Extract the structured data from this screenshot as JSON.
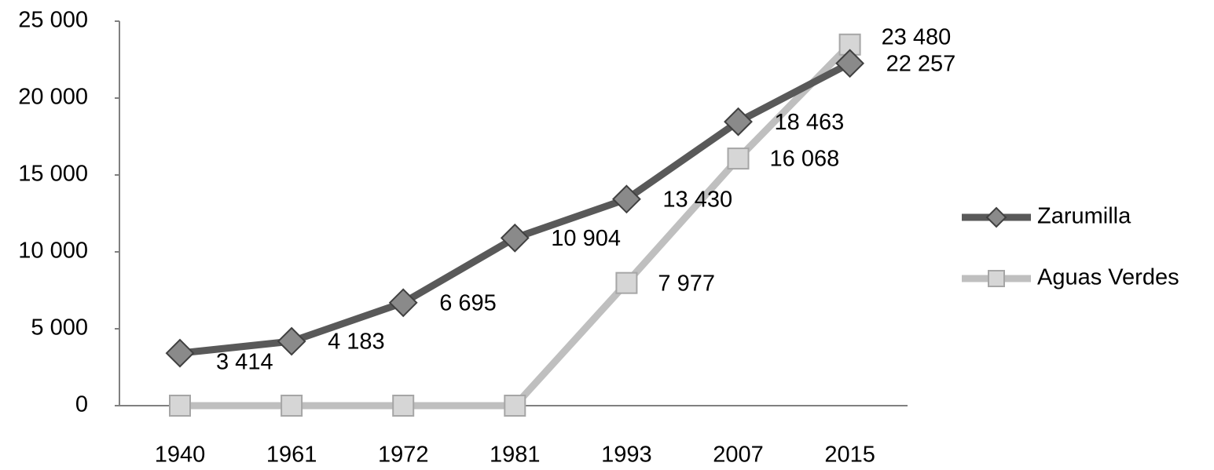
{
  "chart_data": {
    "type": "line",
    "categories": [
      "1940",
      "1961",
      "1972",
      "1981",
      "1993",
      "2007",
      "2015"
    ],
    "series": [
      {
        "name": "Zarumilla",
        "color": "#595959",
        "marker": "diamond",
        "values": [
          3414,
          4183,
          6695,
          10904,
          13430,
          18463,
          22257
        ],
        "value_labels": [
          "3 414",
          "4 183",
          "6 695",
          "10 904",
          "13 430",
          "18 463",
          "22 257"
        ]
      },
      {
        "name": "Aguas Verdes",
        "color": "#bfbfbf",
        "marker": "square",
        "values": [
          0,
          0,
          0,
          0,
          7977,
          16068,
          23480
        ],
        "value_labels": [
          null,
          null,
          null,
          null,
          "7 977",
          "16 068",
          "23 480"
        ]
      }
    ],
    "ylim": [
      0,
      25000
    ],
    "yticks": [
      0,
      {
        "value": 5000,
        "label": "5 000"
      },
      {
        "value": 10000,
        "label": "10 000"
      },
      {
        "value": 15000,
        "label": "15 000"
      },
      {
        "value": 20000,
        "label": "20 000"
      },
      {
        "value": 25000,
        "label": "25 000"
      }
    ],
    "grid": false,
    "legend": "right"
  }
}
